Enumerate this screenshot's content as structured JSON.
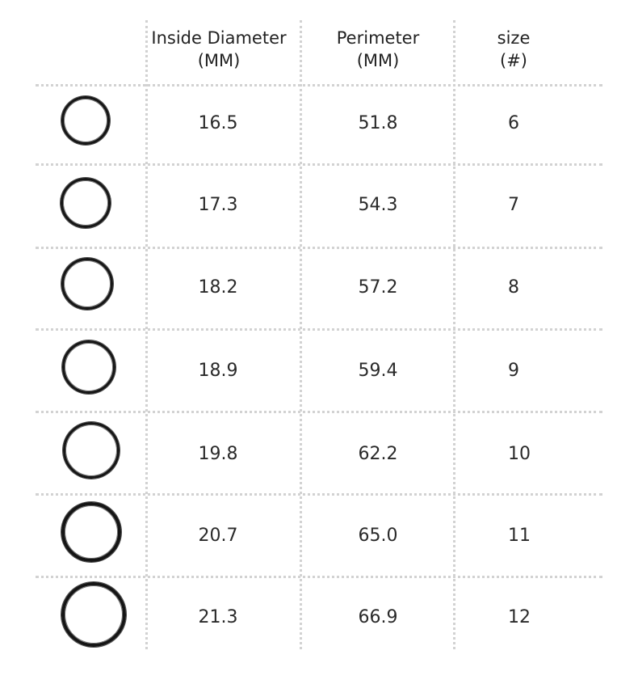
{
  "table": {
    "headers": [
      {
        "line1": "Inside Diameter",
        "line2": "(MM)"
      },
      {
        "line1": "Perimeter",
        "line2": "(MM)"
      },
      {
        "line1": "size",
        "line2": "(#)"
      }
    ],
    "rows": [
      {
        "inside_diameter": "16.5",
        "perimeter": "51.8",
        "size": "6"
      },
      {
        "inside_diameter": "17.3",
        "perimeter": "54.3",
        "size": "7"
      },
      {
        "inside_diameter": "18.2",
        "perimeter": "57.2",
        "size": "8"
      },
      {
        "inside_diameter": "18.9",
        "perimeter": "59.4",
        "size": "9"
      },
      {
        "inside_diameter": "19.8",
        "perimeter": "62.2",
        "size": "10"
      },
      {
        "inside_diameter": "20.7",
        "perimeter": "65.0",
        "size": "11"
      },
      {
        "inside_diameter": "21.3",
        "perimeter": "66.9",
        "size": "12"
      }
    ]
  },
  "icons": {
    "row_image": "ring-icon"
  },
  "colors": {
    "ring": "#151515",
    "grid": "#d2d2d2",
    "text": "#222222"
  }
}
